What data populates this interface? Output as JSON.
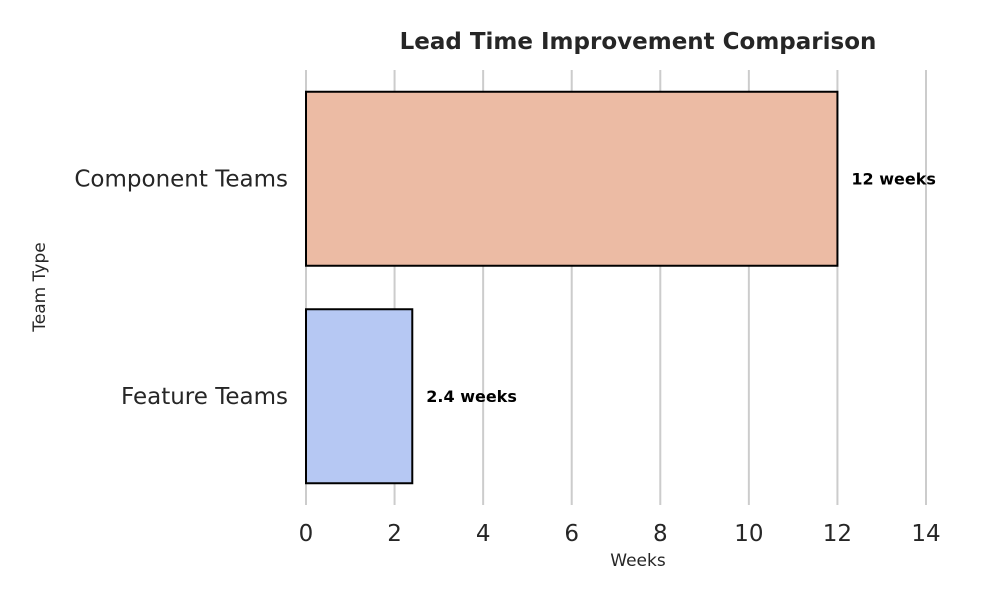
{
  "chart_data": {
    "type": "bar",
    "orientation": "horizontal",
    "title": "Lead Time Improvement Comparison",
    "xlabel": "Weeks",
    "ylabel": "Team Type",
    "categories": [
      "Component Teams",
      "Feature Teams"
    ],
    "values": [
      12,
      2.4
    ],
    "data_labels": [
      "12 weeks",
      "2.4 weeks"
    ],
    "bar_colors": [
      "#ecbba4",
      "#b6c8f3"
    ],
    "bar_edge_color": "#000000",
    "xlim": [
      0,
      14
    ],
    "x_ticks": [
      0,
      2,
      4,
      6,
      8,
      10,
      12,
      14
    ],
    "x_tick_labels": [
      "0",
      "2",
      "4",
      "6",
      "8",
      "10",
      "12",
      "14"
    ],
    "grid": "x",
    "legend": "none"
  }
}
